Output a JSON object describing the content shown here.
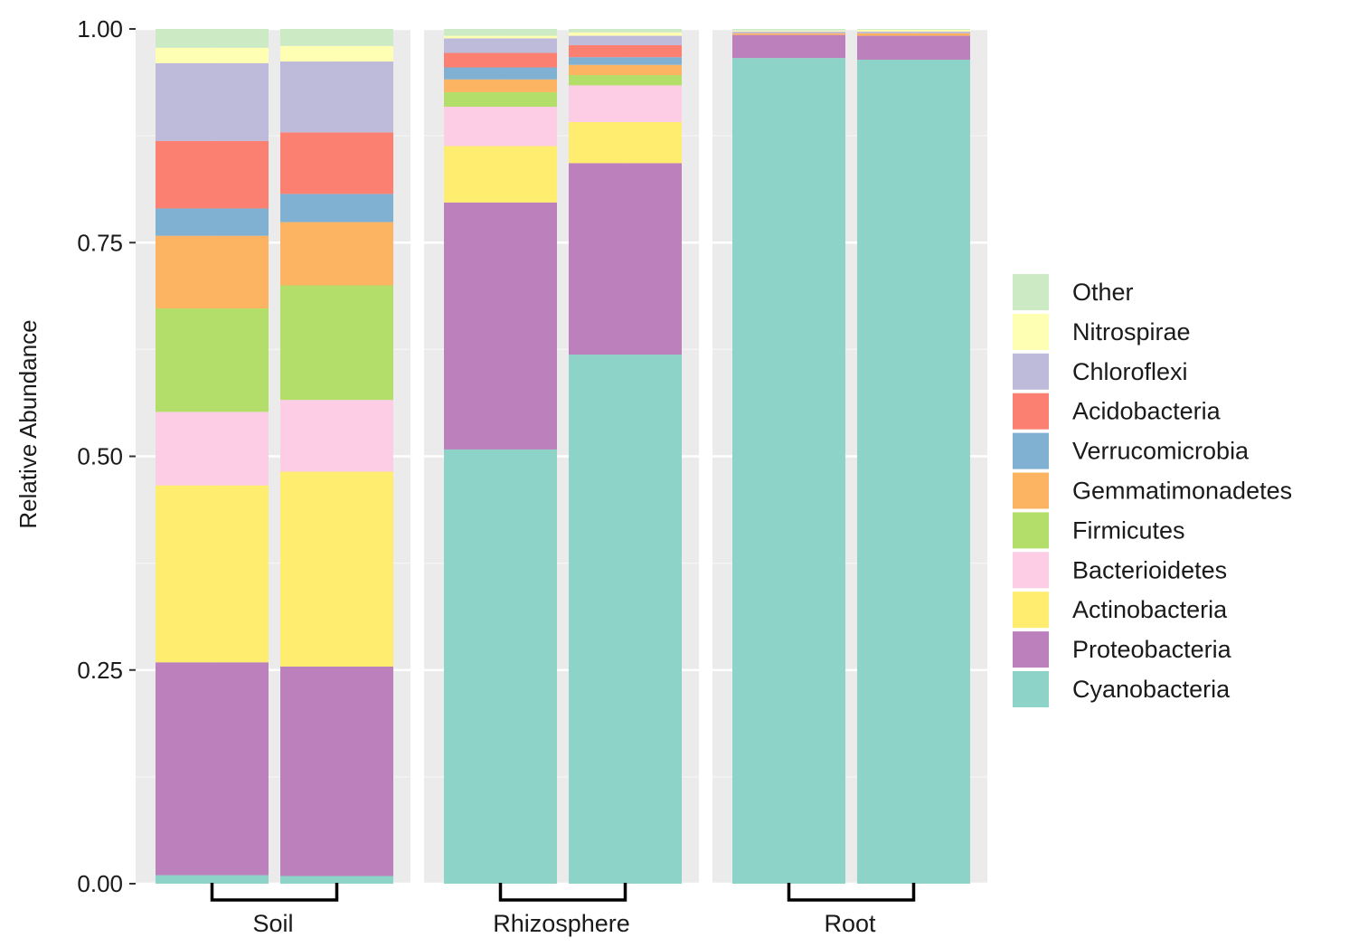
{
  "chart_data": {
    "type": "bar",
    "stacked": true,
    "title": "",
    "xlabel": "",
    "ylabel": "Relative Abundance",
    "ylim": [
      0,
      1
    ],
    "yticks": [
      "0.00",
      "0.25",
      "0.50",
      "0.75",
      "1.00"
    ],
    "ytick_values": [
      0,
      0.25,
      0.5,
      0.75,
      1.0
    ],
    "legend_position": "right",
    "series": [
      {
        "name": "Cyanobacteria",
        "color": "#8DD3C7"
      },
      {
        "name": "Proteobacteria",
        "color": "#BC80BD"
      },
      {
        "name": "Actinobacteria",
        "color": "#FFED6F"
      },
      {
        "name": "Bacterioidetes",
        "color": "#FCCDE5"
      },
      {
        "name": "Firmicutes",
        "color": "#B3DE69"
      },
      {
        "name": "Gemmatimonadetes",
        "color": "#FDB462"
      },
      {
        "name": "Verrucomicrobia",
        "color": "#80B1D3"
      },
      {
        "name": "Acidobacteria",
        "color": "#FB8072"
      },
      {
        "name": "Chloroflexi",
        "color": "#BEBADA"
      },
      {
        "name": "Nitrospirae",
        "color": "#FFFFB3"
      },
      {
        "name": "Other",
        "color": "#CCEBC5"
      }
    ],
    "legend_order": [
      "Other",
      "Nitrospirae",
      "Chloroflexi",
      "Acidobacteria",
      "Verrucomicrobia",
      "Gemmatimonadetes",
      "Firmicutes",
      "Bacterioidetes",
      "Actinobacteria",
      "Proteobacteria",
      "Cyanobacteria"
    ],
    "facets": [
      {
        "label": "Soil",
        "bars": [
          {
            "values": [
              0.01,
              0.249,
              0.207,
              0.086,
              0.121,
              0.085,
              0.032,
              0.079,
              0.091,
              0.018,
              0.022
            ]
          },
          {
            "values": [
              0.009,
              0.245,
              0.228,
              0.084,
              0.134,
              0.074,
              0.033,
              0.072,
              0.083,
              0.018,
              0.02
            ]
          }
        ]
      },
      {
        "label": "Rhizosphere",
        "bars": [
          {
            "values": [
              0.508,
              0.289,
              0.066,
              0.046,
              0.017,
              0.015,
              0.014,
              0.017,
              0.017,
              0.003,
              0.008
            ]
          },
          {
            "values": [
              0.619,
              0.224,
              0.048,
              0.043,
              0.012,
              0.012,
              0.009,
              0.014,
              0.011,
              0.004,
              0.004
            ]
          }
        ]
      },
      {
        "label": "Root",
        "bars": [
          {
            "values": [
              0.966,
              0.027,
              0.0,
              0.0,
              0.0,
              0.002,
              0.0,
              0.0,
              0.002,
              0.001,
              0.002
            ]
          },
          {
            "values": [
              0.964,
              0.028,
              0.0,
              0.0,
              0.0,
              0.003,
              0.0,
              0.0,
              0.002,
              0.002,
              0.001
            ]
          }
        ]
      }
    ]
  }
}
